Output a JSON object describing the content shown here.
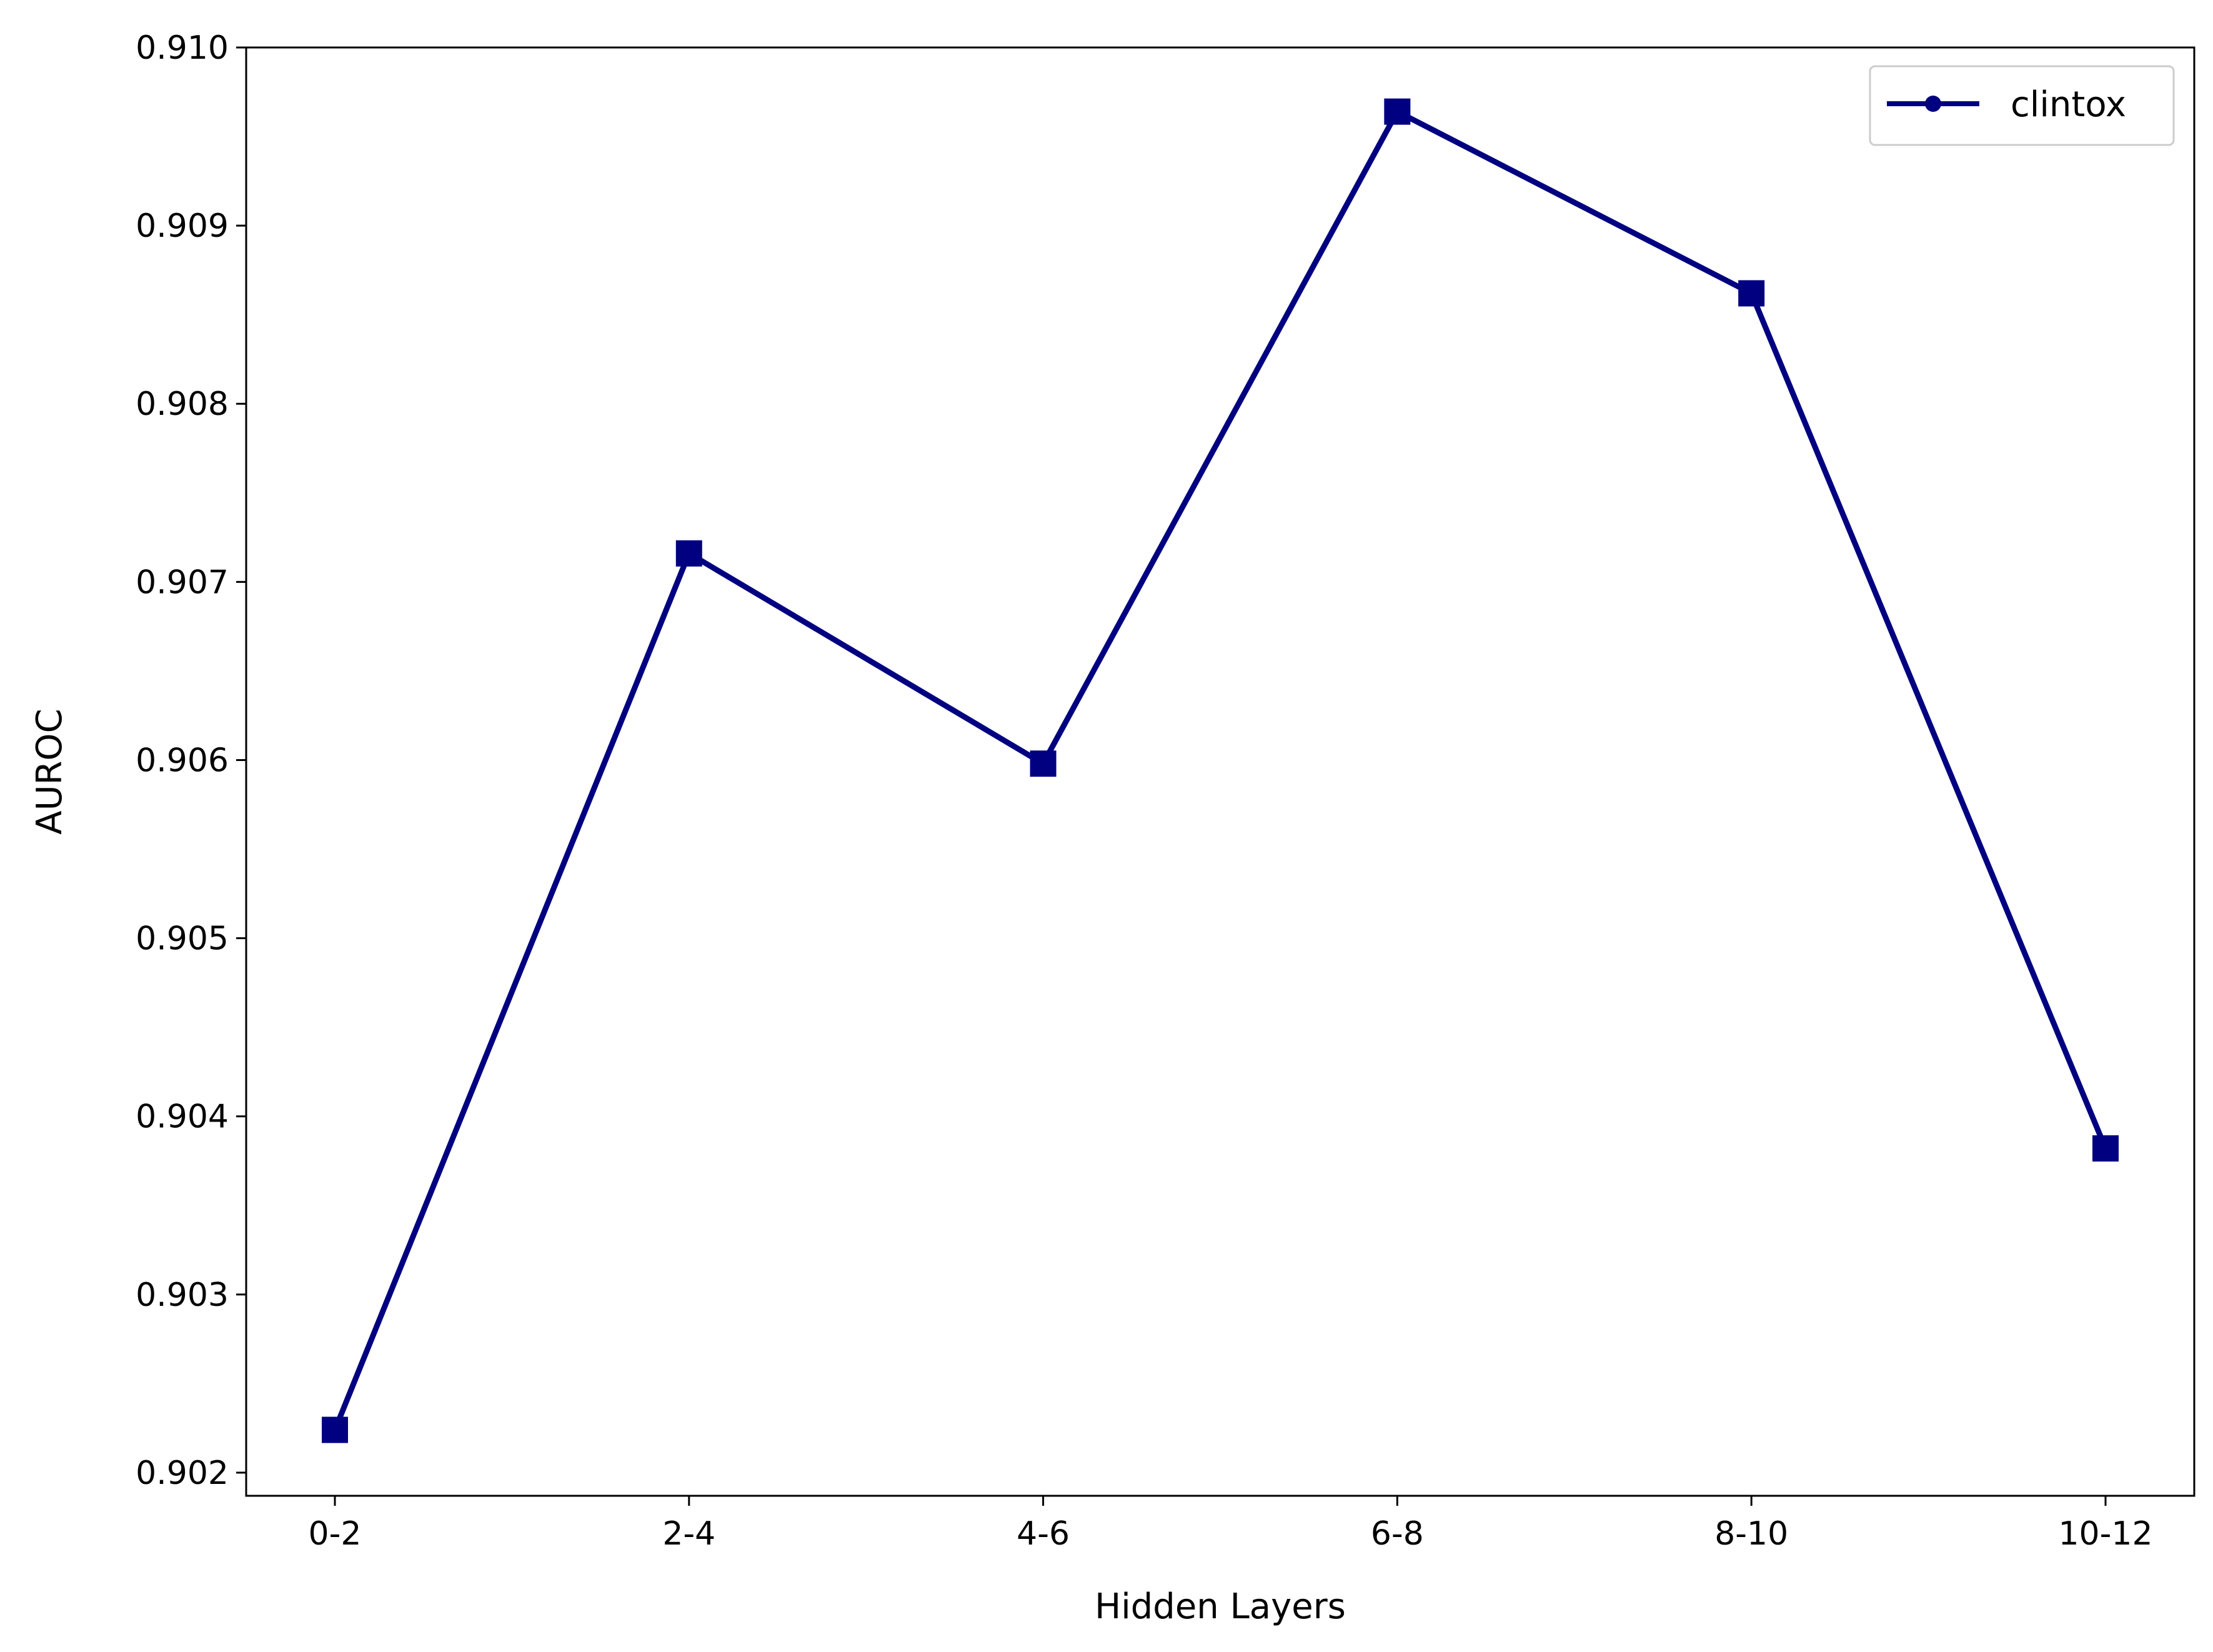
{
  "chart_data": {
    "type": "line",
    "categories": [
      "0-2",
      "2-4",
      "4-6",
      "6-8",
      "8-10",
      "10-12"
    ],
    "series": [
      {
        "name": "clintox",
        "values": [
          0.90224,
          0.90716,
          0.90598,
          0.90964,
          0.90862,
          0.90382
        ]
      }
    ],
    "xlabel": "Hidden Layers",
    "ylabel": "AUROC",
    "ylim": [
      0.90187,
      0.91
    ],
    "yticks": [
      "0.902",
      "0.903",
      "0.904",
      "0.905",
      "0.906",
      "0.907",
      "0.908",
      "0.909",
      "0.910"
    ],
    "ytick_values": [
      0.902,
      0.903,
      0.904,
      0.905,
      0.906,
      0.907,
      0.908,
      0.909,
      0.91
    ],
    "grid": false,
    "legend": "top-right",
    "line_color": "#000080",
    "marker": "square"
  }
}
